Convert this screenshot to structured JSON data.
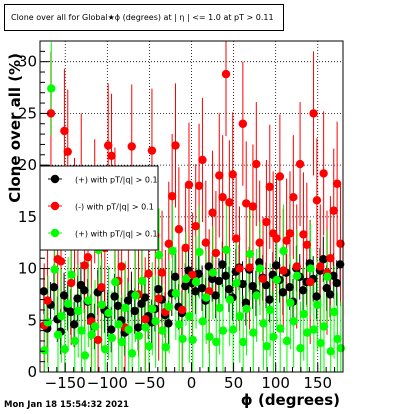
{
  "title": "Clone  over all for Global★ϕ (degrees) at |  η | <= 1.0 at pT > 0.11",
  "timestamp": "Mon Jan 18 15:54:32 2021",
  "chart_data": {
    "type": "scatter",
    "xlabel": "ϕ (degrees)",
    "ylabel": "Clone  over all (%)",
    "xlim": [
      -180,
      180
    ],
    "ylim": [
      0,
      32
    ],
    "x_ticks": [
      -150,
      -100,
      -50,
      0,
      50,
      100,
      150
    ],
    "x_tick_labels": [
      "−150",
      "−100",
      "−50",
      "0",
      "50",
      "100",
      "150"
    ],
    "y_ticks": [
      0,
      5,
      10,
      15,
      20,
      25,
      30
    ],
    "grid": true,
    "legend_position": "left",
    "colors": {
      "black": "#000000",
      "red": "#ff0000",
      "green": "#00ff00"
    },
    "x": [
      -175,
      -171,
      -167,
      -163,
      -159,
      -155,
      -151,
      -147,
      -143,
      -139,
      -135,
      -131,
      -127,
      -123,
      -119,
      -115,
      -111,
      -107,
      -103,
      -99,
      -95,
      -91,
      -87,
      -83,
      -79,
      -75,
      -71,
      -67,
      -63,
      -59,
      -55,
      -51,
      -47,
      -43,
      -39,
      -35,
      -31,
      -27,
      -23,
      -19,
      -15,
      -11,
      -7,
      -3,
      1,
      5,
      9,
      13,
      17,
      21,
      25,
      29,
      33,
      37,
      41,
      45,
      49,
      53,
      57,
      61,
      65,
      69,
      73,
      77,
      81,
      85,
      89,
      93,
      97,
      101,
      105,
      109,
      113,
      117,
      121,
      125,
      129,
      133,
      137,
      141,
      145,
      149,
      153,
      157,
      161,
      165,
      169,
      173,
      177
    ],
    "series": [
      {
        "name": "(+) with pT/|q| > 0.1",
        "color": "#000000",
        "values": [
          7.8,
          4.2,
          6.5,
          8.2,
          5.1,
          3.9,
          7.4,
          6.2,
          5.8,
          4.6,
          7.1,
          8.4,
          7.9,
          6.8,
          5.3,
          4.4,
          7.7,
          8.1,
          6.0,
          5.6,
          4.1,
          7.3,
          6.4,
          5.0,
          3.8,
          6.9,
          7.5,
          5.9,
          4.3,
          6.6,
          7.2,
          5.4,
          4.8,
          6.1,
          8.0,
          7.0,
          5.5,
          4.7,
          7.6,
          9.2,
          6.3,
          5.7,
          8.3,
          9.8,
          8.6,
          7.8,
          9.5,
          8.1,
          6.9,
          10.2,
          9.0,
          7.4,
          8.8,
          10.4,
          9.3,
          8.0,
          7.2,
          9.7,
          10.1,
          8.5,
          6.7,
          9.9,
          8.3,
          7.6,
          10.6,
          9.1,
          8.4,
          7.0,
          9.4,
          10.3,
          8.9,
          7.7,
          9.6,
          8.2,
          6.8,
          10.0,
          9.2,
          7.9,
          8.7,
          10.5,
          9.0,
          7.3,
          9.8,
          10.9,
          8.1,
          7.5,
          9.3,
          8.6,
          10.4
        ]
      },
      {
        "name": "(-) with pT/|q| > 0.1",
        "color": "#ff0000",
        "values": [
          4.5,
          6.9,
          25.0,
          12.4,
          10.9,
          10.7,
          23.3,
          21.3,
          8.6,
          14.7,
          12.9,
          19.0,
          10.3,
          11.1,
          4.9,
          16.5,
          3.1,
          8.2,
          12.0,
          21.9,
          20.9,
          15.7,
          8.8,
          10.2,
          4.3,
          12.9,
          21.8,
          13.6,
          7.5,
          12.7,
          5.1,
          9.5,
          21.4,
          13.2,
          7.1,
          9.6,
          5.8,
          12.4,
          17.0,
          21.9,
          13.8,
          6.0,
          12.0,
          18.1,
          9.4,
          14.1,
          18.0,
          20.5,
          12.5,
          7.8,
          15.4,
          11.5,
          19.0,
          16.9,
          28.8,
          16.4,
          19.1,
          12.9,
          10.0,
          24.0,
          16.3,
          10.1,
          16.0,
          20.1,
          12.5,
          9.0,
          14.5,
          17.9,
          13.4,
          12.9,
          18.9,
          9.8,
          12.7,
          13.4,
          16.9,
          10.2,
          20.1,
          13.3,
          12.3,
          8.7,
          25.0,
          16.6,
          10.2,
          19.2,
          9.6,
          11.0,
          15.6,
          18.2,
          12.4
        ]
      },
      {
        "name": "(+) with pT/|q| > 0.1",
        "color": "#00ff00",
        "values": [
          2.1,
          4.8,
          27.4,
          9.9,
          3.6,
          5.4,
          2.2,
          6.6,
          9.4,
          3.0,
          5.9,
          4.0,
          1.6,
          6.9,
          3.6,
          4.4,
          11.8,
          6.5,
          2.2,
          5.7,
          3.3,
          8.7,
          4.6,
          2.9,
          6.2,
          4.1,
          1.8,
          7.4,
          3.5,
          8.8,
          4.3,
          2.5,
          6.1,
          4.9,
          11.3,
          4.0,
          2.4,
          6.3,
          11.7,
          7.6,
          4.6,
          3.2,
          9.0,
          5.4,
          3.1,
          8.7,
          11.6,
          4.9,
          7.2,
          3.4,
          9.6,
          2.9,
          6.2,
          4.0,
          11.8,
          7.0,
          4.1,
          8.6,
          5.4,
          2.9,
          6.1,
          11.4,
          3.8,
          7.4,
          10.0,
          4.7,
          2.5,
          6.0,
          3.4,
          8.9,
          4.2,
          11.7,
          3.0,
          6.7,
          4.9,
          9.3,
          2.3,
          5.6,
          3.8,
          10.0,
          4.1,
          6.5,
          2.8,
          4.4,
          9.2,
          2.0,
          5.8,
          3.2,
          2.3
        ]
      }
    ],
    "error_bars": [
      {
        "series": "black",
        "error": 2.2
      },
      {
        "series": "red",
        "error": 6.0
      },
      {
        "series": "green",
        "error": 4.5
      }
    ]
  }
}
